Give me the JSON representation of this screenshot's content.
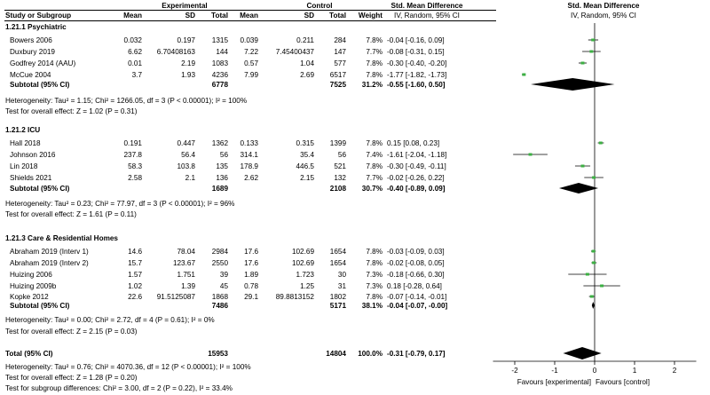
{
  "header": {
    "study": "Study or Subgroup",
    "experimental": "Experimental",
    "control": "Control",
    "mean": "Mean",
    "sd": "SD",
    "total": "Total",
    "weight": "Weight",
    "smd": "Std. Mean Difference",
    "method": "IV, Random, 95% CI"
  },
  "groups": [
    {
      "title": "1.21.1 Psychiatric",
      "rows": [
        {
          "study": "Bowers 2006",
          "em": "0.032",
          "esd": "0.197",
          "et": "1315",
          "cm": "0.039",
          "csd": "0.211",
          "ct": "284",
          "w": "7.8%",
          "ci": "-0.04 [-0.16, 0.09]"
        },
        {
          "study": "Duxbury 2019",
          "em": "6.62",
          "esd": "6.70408163",
          "et": "144",
          "cm": "7.22",
          "csd": "7.45400437",
          "ct": "147",
          "w": "7.7%",
          "ci": "-0.08 [-0.31, 0.15]"
        },
        {
          "study": "Godfrey 2014 (AAU)",
          "em": "0.01",
          "esd": "2.19",
          "et": "1083",
          "cm": "0.57",
          "csd": "1.04",
          "ct": "577",
          "w": "7.8%",
          "ci": "-0.30 [-0.40, -0.20]"
        },
        {
          "study": "McCue 2004",
          "em": "3.7",
          "esd": "1.93",
          "et": "4236",
          "cm": "7.99",
          "csd": "2.69",
          "ct": "6517",
          "w": "7.8%",
          "ci": "-1.77 [-1.82, -1.73]"
        }
      ],
      "subtotal": {
        "label": "Subtotal (95% CI)",
        "et": "6778",
        "ct": "7525",
        "w": "31.2%",
        "ci": "-0.55 [-1.60, 0.50]"
      },
      "het": "Heterogeneity: Tau² = 1.15; Chi² = 1266.05, df = 3 (P < 0.00001); I² = 100%",
      "test": "Test for overall effect: Z = 1.02 (P = 0.31)"
    },
    {
      "title": "1.21.2 ICU",
      "rows": [
        {
          "study": "Hall 2018",
          "em": "0.191",
          "esd": "0.447",
          "et": "1362",
          "cm": "0.133",
          "csd": "0.315",
          "ct": "1399",
          "w": "7.8%",
          "ci": "0.15 [0.08, 0.23]"
        },
        {
          "study": "Johnson 2016",
          "em": "237.8",
          "esd": "56.4",
          "et": "56",
          "cm": "314.1",
          "csd": "35.4",
          "ct": "56",
          "w": "7.4%",
          "ci": "-1.61 [-2.04, -1.18]"
        },
        {
          "study": "Lin 2018",
          "em": "58.3",
          "esd": "103.8",
          "et": "135",
          "cm": "178.9",
          "csd": "446.5",
          "ct": "521",
          "w": "7.8%",
          "ci": "-0.30 [-0.49, -0.11]"
        },
        {
          "study": "Shields 2021",
          "em": "2.58",
          "esd": "2.1",
          "et": "136",
          "cm": "2.62",
          "csd": "2.15",
          "ct": "132",
          "w": "7.7%",
          "ci": "-0.02 [-0.26, 0.22]"
        }
      ],
      "subtotal": {
        "label": "Subtotal (95% CI)",
        "et": "1689",
        "ct": "2108",
        "w": "30.7%",
        "ci": "-0.40 [-0.89, 0.09]"
      },
      "het": "Heterogeneity: Tau² = 0.23; Chi² = 77.97, df = 3 (P < 0.00001); I² = 96%",
      "test": "Test for overall effect: Z = 1.61 (P = 0.11)"
    },
    {
      "title": "1.21.3 Care & Residential Homes",
      "rows": [
        {
          "study": "Abraham 2019 (Interv 1)",
          "em": "14.6",
          "esd": "78.04",
          "et": "2984",
          "cm": "17.6",
          "csd": "102.69",
          "ct": "1654",
          "w": "7.8%",
          "ci": "-0.03 [-0.09, 0.03]"
        },
        {
          "study": "Abraham 2019 (Interv 2)",
          "em": "15.7",
          "esd": "123.67",
          "et": "2550",
          "cm": "17.6",
          "csd": "102.69",
          "ct": "1654",
          "w": "7.8%",
          "ci": "-0.02 [-0.08, 0.05]"
        },
        {
          "study": "Huizing 2006",
          "em": "1.57",
          "esd": "1.751",
          "et": "39",
          "cm": "1.89",
          "csd": "1.723",
          "ct": "30",
          "w": "7.3%",
          "ci": "-0.18 [-0.66, 0.30]"
        },
        {
          "study": "Huizing 2009b",
          "em": "1.02",
          "esd": "1.39",
          "et": "45",
          "cm": "0.78",
          "csd": "1.25",
          "ct": "31",
          "w": "7.3%",
          "ci": "0.18 [-0.28, 0.64]"
        },
        {
          "study": "Kopke 2012",
          "em": "22.6",
          "esd": "91.5125087",
          "et": "1868",
          "cm": "29.1",
          "csd": "89.8813152",
          "ct": "1802",
          "w": "7.8%",
          "ci": "-0.07 [-0.14, -0.01]"
        }
      ],
      "subtotal": {
        "label": "Subtotal (95% CI)",
        "et": "7486",
        "ct": "5171",
        "w": "38.1%",
        "ci": "-0.04 [-0.07, -0.00]"
      },
      "het": "Heterogeneity: Tau² = 0.00; Chi² = 2.72, df = 4 (P = 0.61); I² = 0%",
      "test": "Test for overall effect: Z = 2.15 (P = 0.03)"
    }
  ],
  "total": {
    "label": "Total (95% CI)",
    "et": "15953",
    "ct": "14804",
    "w": "100.0%",
    "ci": "-0.31 [-0.79, 0.17]",
    "het": "Heterogeneity: Tau² = 0.76; Chi² = 4070.36, df = 12 (P < 0.00001); I² = 100%",
    "test": "Test for overall effect: Z = 1.28 (P = 0.20)",
    "subgroup": "Test for subgroup differences: Chi² = 3.00, df = 2 (P = 0.22), I² = 33.4%"
  },
  "axis": {
    "ticks": [
      "-2",
      "-1",
      "0",
      "1",
      "2"
    ],
    "favours_left": "Favours [experimental]",
    "favours_right": "Favours [control]"
  },
  "colors": {
    "point": "#3cb043",
    "line": "#000000",
    "diamond": "#000000"
  },
  "chart_data": {
    "type": "forest",
    "title": "Std. Mean Difference",
    "subtitle": "IV, Random, 95% CI",
    "xlim": [
      -2.5,
      2.5
    ],
    "studies": [
      {
        "name": "Bowers 2006",
        "est": -0.04,
        "lo": -0.16,
        "hi": 0.09
      },
      {
        "name": "Duxbury 2019",
        "est": -0.08,
        "lo": -0.31,
        "hi": 0.15
      },
      {
        "name": "Godfrey 2014 (AAU)",
        "est": -0.3,
        "lo": -0.4,
        "hi": -0.2
      },
      {
        "name": "McCue 2004",
        "est": -1.77,
        "lo": -1.82,
        "hi": -1.73
      },
      {
        "name": "Hall 2018",
        "est": 0.15,
        "lo": 0.08,
        "hi": 0.23
      },
      {
        "name": "Johnson 2016",
        "est": -1.61,
        "lo": -2.04,
        "hi": -1.18
      },
      {
        "name": "Lin 2018",
        "est": -0.3,
        "lo": -0.49,
        "hi": -0.11
      },
      {
        "name": "Shields 2021",
        "est": -0.02,
        "lo": -0.26,
        "hi": 0.22
      },
      {
        "name": "Abraham 2019 (Interv 1)",
        "est": -0.03,
        "lo": -0.09,
        "hi": 0.03
      },
      {
        "name": "Abraham 2019 (Interv 2)",
        "est": -0.02,
        "lo": -0.08,
        "hi": 0.05
      },
      {
        "name": "Huizing 2006",
        "est": -0.18,
        "lo": -0.66,
        "hi": 0.3
      },
      {
        "name": "Huizing 2009b",
        "est": 0.18,
        "lo": -0.28,
        "hi": 0.64
      },
      {
        "name": "Kopke 2012",
        "est": -0.07,
        "lo": -0.14,
        "hi": -0.01
      }
    ],
    "pooled": [
      {
        "name": "Subtotal 1.21.1",
        "est": -0.55,
        "lo": -1.6,
        "hi": 0.5
      },
      {
        "name": "Subtotal 1.21.2",
        "est": -0.4,
        "lo": -0.89,
        "hi": 0.09
      },
      {
        "name": "Subtotal 1.21.3",
        "est": -0.04,
        "lo": -0.07,
        "hi": 0.0
      },
      {
        "name": "Total",
        "est": -0.31,
        "lo": -0.79,
        "hi": 0.17
      }
    ],
    "xticks": [
      -2,
      -1,
      0,
      1,
      2
    ]
  }
}
